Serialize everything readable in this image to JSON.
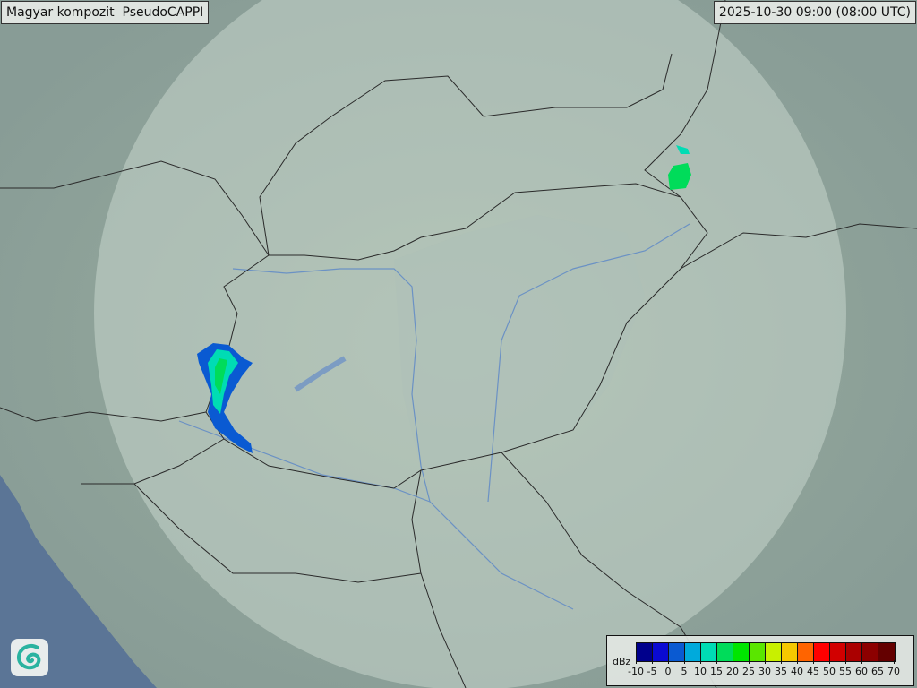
{
  "header": {
    "title": "Magyar kompozit  PseudoCAPPI",
    "timestamp": "2025-10-30 09:00 (08:00 UTC)"
  },
  "legend": {
    "unit": "dBz",
    "ticks": [
      "-10",
      "-5",
      "0",
      "5",
      "10",
      "15",
      "20",
      "25",
      "30",
      "35",
      "40",
      "45",
      "50",
      "55",
      "60",
      "65",
      "70"
    ],
    "colors": [
      "#00008c",
      "#0a0ad2",
      "#0a5ad2",
      "#00aadc",
      "#00dcb4",
      "#00dc5a",
      "#00e600",
      "#5ae600",
      "#c8f000",
      "#f5c800",
      "#ff6400",
      "#ff0000",
      "#d20000",
      "#aa0000",
      "#8c0000",
      "#640000"
    ]
  },
  "map": {
    "land_color": "#8fa39a",
    "radar_coverage_color": "#c9d6d0",
    "sea_color": "#5b7596",
    "border_color": "#2a2a2a",
    "river_color": "#5a86c8"
  },
  "logo": {
    "icon": "swirl-logo-icon"
  }
}
